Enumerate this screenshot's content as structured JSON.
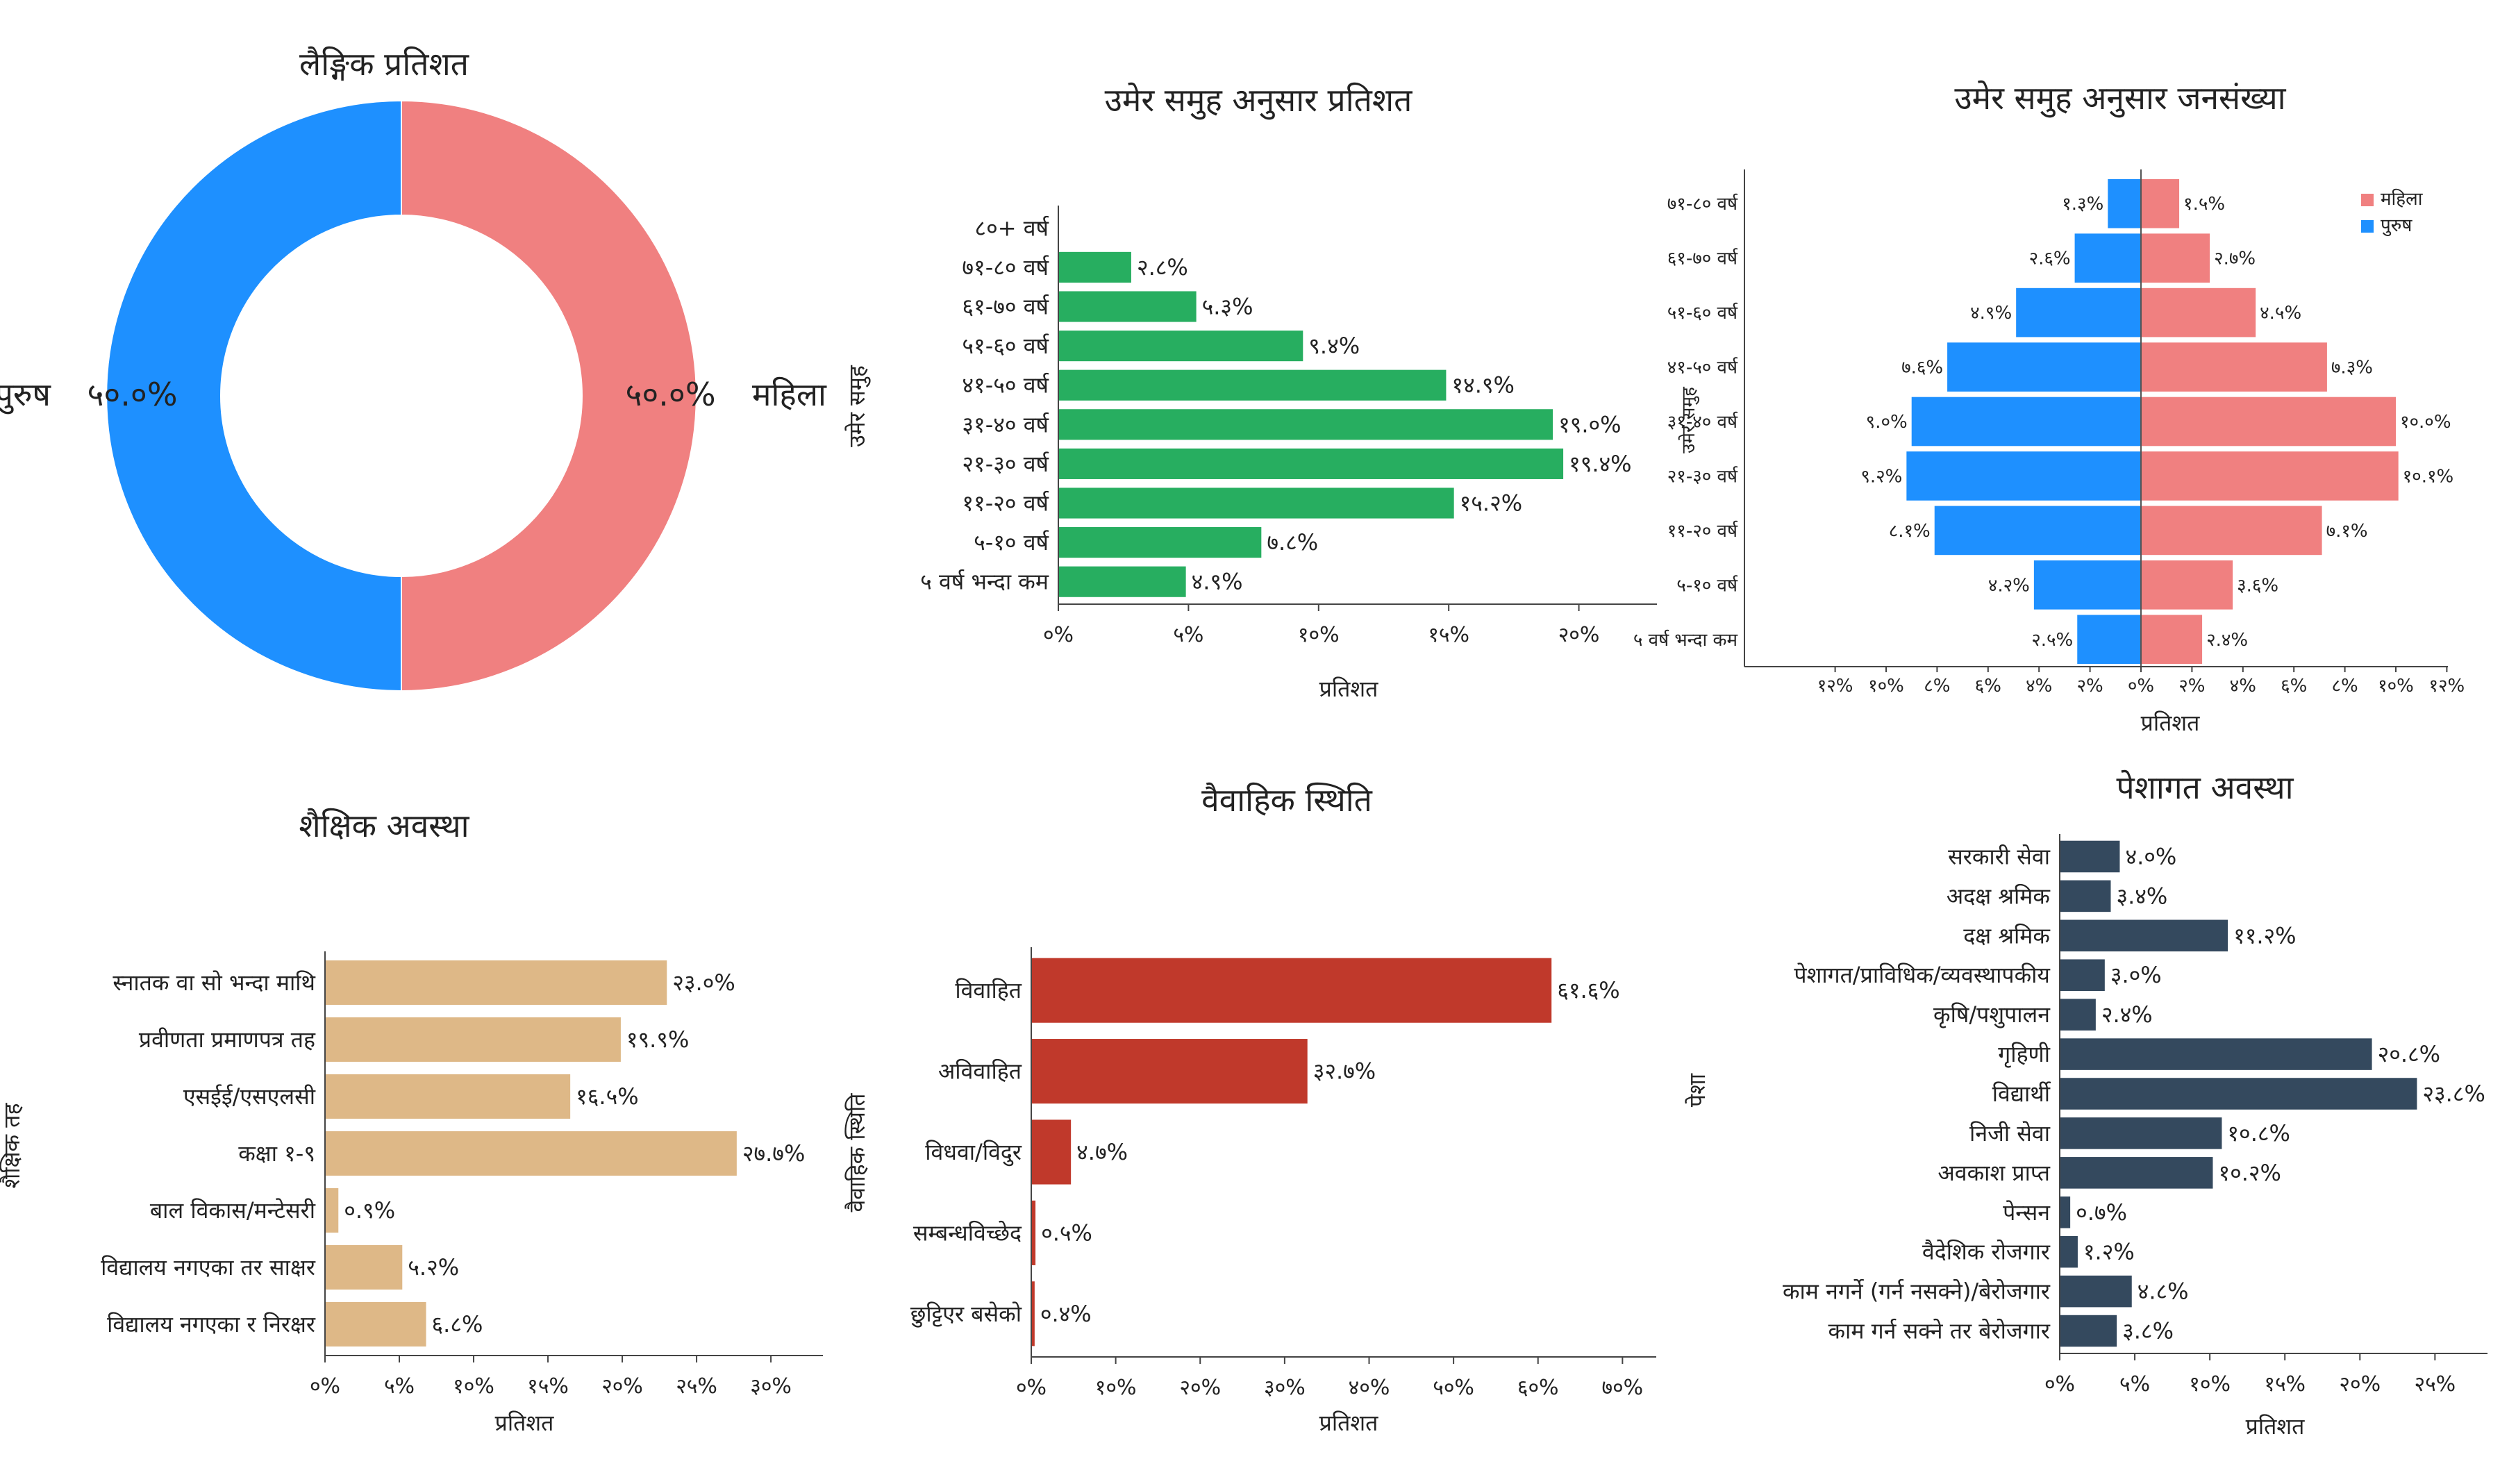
{
  "chart_data": [
    {
      "type": "pie",
      "donut": true,
      "title": "लैङ्गिक प्रतिशत",
      "categories": [
        "महिला",
        "पुरुष"
      ],
      "values": [
        50.0,
        50.0
      ],
      "value_labels": [
        "५०.०%",
        "५०.०%"
      ],
      "colors": [
        "#F08080",
        "#1E90FF"
      ]
    },
    {
      "type": "bar",
      "orientation": "horizontal",
      "title": "उमेर समुह अनुसार प्रतिशत",
      "xlabel": "प्रतिशत",
      "ylabel": "उमेर समुह",
      "categories": [
        "८०+ वर्ष",
        "७१-८० वर्ष",
        "६१-७० वर्ष",
        "५१-६० वर्ष",
        "४१-५० वर्ष",
        "३१-४० वर्ष",
        "२१-३० वर्ष",
        "११-२० वर्ष",
        "५-१० वर्ष",
        "५ वर्ष भन्दा कम"
      ],
      "values": [
        0,
        2.8,
        5.3,
        9.4,
        14.9,
        19.0,
        19.4,
        15.2,
        7.8,
        4.9
      ],
      "value_labels": [
        "",
        "२.८%",
        "५.३%",
        "९.४%",
        "१४.९%",
        "१९.०%",
        "१९.४%",
        "१५.२%",
        "७.८%",
        "४.९%"
      ],
      "xticks": [
        0,
        5,
        10,
        15,
        20
      ],
      "xtick_labels": [
        "०%",
        "५%",
        "१०%",
        "१५%",
        "२०%"
      ],
      "xlim": [
        0,
        23
      ],
      "color": "#27AE60"
    },
    {
      "type": "bar",
      "orientation": "horizontal",
      "subtype": "population-pyramid",
      "title": "उमेर समुह अनुसार जनसंख्या",
      "xlabel": "प्रतिशत",
      "ylabel": "उमेर समुह",
      "legend": "top-right",
      "categories": [
        "७१-८० वर्ष",
        "६१-७० वर्ष",
        "५१-६० वर्ष",
        "४१-५० वर्ष",
        "३१-४० वर्ष",
        "२१-३० वर्ष",
        "११-२० वर्ष",
        "५-१० वर्ष",
        "५ वर्ष भन्दा कम"
      ],
      "series": [
        {
          "name": "महिला",
          "color": "#F08080",
          "values": [
            1.5,
            2.7,
            4.5,
            7.3,
            10.0,
            10.1,
            7.1,
            3.6,
            2.4
          ],
          "value_labels": [
            "१.५%",
            "२.७%",
            "४.५%",
            "७.३%",
            "१०.०%",
            "१०.१%",
            "७.१%",
            "३.६%",
            "२.४%"
          ]
        },
        {
          "name": "पुरुष",
          "color": "#1E90FF",
          "values": [
            1.3,
            2.6,
            4.9,
            7.6,
            9.0,
            9.2,
            8.1,
            4.2,
            2.5
          ],
          "value_labels": [
            "१.३%",
            "२.६%",
            "४.९%",
            "७.६%",
            "९.०%",
            "९.२%",
            "८.१%",
            "४.२%",
            "२.५%"
          ]
        }
      ],
      "xticks": [
        -12,
        -10,
        -8,
        -6,
        -4,
        -2,
        0,
        2,
        4,
        6,
        8,
        10,
        12
      ],
      "xtick_labels": [
        "१२%",
        "१०%",
        "८%",
        "६%",
        "४%",
        "२%",
        "०%",
        "२%",
        "४%",
        "६%",
        "८%",
        "१०%",
        "१२%"
      ],
      "xlim": [
        -12,
        12
      ]
    },
    {
      "type": "bar",
      "orientation": "horizontal",
      "title": "शैक्षिक अवस्था",
      "xlabel": "प्रतिशत",
      "ylabel": "शैक्षिक तह",
      "categories": [
        "स्नातक वा सो भन्दा माथि",
        "प्रवीणता प्रमाणपत्र तह",
        "एसईई/एसएलसी",
        "कक्षा १-९",
        "बाल विकास/मन्टेसरी",
        "विद्यालय नगएका तर साक्षर",
        "विद्यालय नगएका र निरक्षर"
      ],
      "values": [
        23.0,
        19.9,
        16.5,
        27.7,
        0.9,
        5.2,
        6.8
      ],
      "value_labels": [
        "२३.०%",
        "१९.९%",
        "१६.५%",
        "२७.७%",
        "०.९%",
        "५.२%",
        "६.८%"
      ],
      "xticks": [
        0,
        5,
        10,
        15,
        20,
        25,
        30
      ],
      "xtick_labels": [
        "०%",
        "५%",
        "१०%",
        "१५%",
        "२०%",
        "२५%",
        "३०%"
      ],
      "xlim": [
        0,
        33.5
      ],
      "color": "#DEB887"
    },
    {
      "type": "bar",
      "orientation": "horizontal",
      "title": "वैवाहिक स्थिति",
      "xlabel": "प्रतिशत",
      "ylabel": "वैवाहिक स्थिति",
      "categories": [
        "विवाहित",
        "अविवाहित",
        "विधवा/विदुर",
        "सम्बन्धविच्छेद",
        "छुट्टिएर बसेको"
      ],
      "values": [
        61.6,
        32.7,
        4.7,
        0.5,
        0.4
      ],
      "value_labels": [
        "६१.६%",
        "३२.७%",
        "४.७%",
        "०.५%",
        "०.४%"
      ],
      "xticks": [
        0,
        10,
        20,
        30,
        40,
        50,
        60,
        70
      ],
      "xtick_labels": [
        "०%",
        "१०%",
        "२०%",
        "३०%",
        "४०%",
        "५०%",
        "६०%",
        "७०%"
      ],
      "xlim": [
        0,
        74
      ],
      "color": "#C0392B"
    },
    {
      "type": "bar",
      "orientation": "horizontal",
      "title": "पेशागत अवस्था",
      "xlabel": "प्रतिशत",
      "ylabel": "पेशा",
      "categories": [
        "सरकारी सेवा",
        "अदक्ष श्रमिक",
        "दक्ष श्रमिक",
        "पेशागत/प्राविधिक/व्यवस्थापकीय",
        "कृषि/पशुपालन",
        "गृहिणी",
        "विद्यार्थी",
        "निजी सेवा",
        "अवकाश प्राप्त",
        "पेन्सन",
        "वैदेशिक रोजगार",
        "काम नगर्ने (गर्न नसक्ने)/बेरोजगार",
        "काम गर्न सक्ने तर बेरोजगार"
      ],
      "values": [
        4.0,
        3.4,
        11.2,
        3.0,
        2.4,
        20.8,
        23.8,
        10.8,
        10.2,
        0.7,
        1.2,
        4.8,
        3.8
      ],
      "value_labels": [
        "४.०%",
        "३.४%",
        "११.२%",
        "३.०%",
        "२.४%",
        "२०.८%",
        "२३.८%",
        "१०.८%",
        "१०.२%",
        "०.७%",
        "१.२%",
        "४.८%",
        "३.८%"
      ],
      "xticks": [
        0,
        5,
        10,
        15,
        20,
        25
      ],
      "xtick_labels": [
        "०%",
        "५%",
        "१०%",
        "१५%",
        "२०%",
        "२५%"
      ],
      "xlim": [
        0,
        28.5
      ],
      "color": "#34495E"
    }
  ]
}
